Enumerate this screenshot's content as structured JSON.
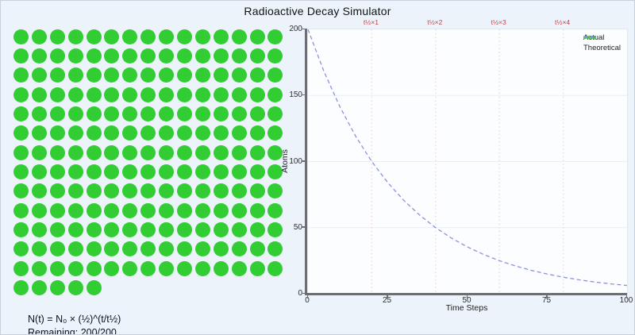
{
  "title": "Radioactive Decay Simulator",
  "atoms": {
    "total": 200,
    "per_row": 15,
    "rows": 14,
    "color": "#32cd32"
  },
  "chart_data": {
    "type": "line",
    "title": "",
    "xlabel": "Time Steps",
    "ylabel": "Atoms",
    "xlim": [
      0,
      100
    ],
    "ylim": [
      0,
      200
    ],
    "xticks": [
      0,
      25,
      50,
      75,
      100
    ],
    "yticks": [
      0,
      50,
      100,
      150,
      200
    ],
    "grid": "horizontal-light",
    "legend_position": "top-right",
    "half_life": 20,
    "initial_atoms": 200,
    "half_life_markers": [
      {
        "x": 20,
        "label": "t½×1"
      },
      {
        "x": 40,
        "label": "t½×2"
      },
      {
        "x": 60,
        "label": "t½×3"
      },
      {
        "x": 80,
        "label": "t½×4"
      }
    ],
    "series": [
      {
        "name": "Actual",
        "color": "#32cd32",
        "style": "solid",
        "points": [
          [
            0,
            200
          ]
        ]
      },
      {
        "name": "Theoretical",
        "color": "#8b92da",
        "style": "dashed",
        "points": [
          [
            0,
            200
          ],
          [
            5,
            168.18
          ],
          [
            10,
            141.42
          ],
          [
            15,
            118.92
          ],
          [
            20,
            100
          ],
          [
            25,
            84.09
          ],
          [
            30,
            70.71
          ],
          [
            35,
            59.46
          ],
          [
            40,
            50
          ],
          [
            45,
            42.04
          ],
          [
            50,
            35.36
          ],
          [
            55,
            29.73
          ],
          [
            60,
            25
          ],
          [
            65,
            21.02
          ],
          [
            70,
            17.68
          ],
          [
            75,
            14.87
          ],
          [
            80,
            12.5
          ],
          [
            85,
            10.51
          ],
          [
            90,
            8.84
          ],
          [
            95,
            7.43
          ],
          [
            100,
            6.25
          ]
        ]
      }
    ]
  },
  "footer": {
    "formula": "N(t) = N₀ × (½)^(t/t½)",
    "remaining": "Remaining: 200/200"
  },
  "colors": {
    "background": "#ecf3fa",
    "plot_background": "#fcfdff",
    "atom_green": "#32cd32",
    "theoretical_line": "#8b92da",
    "half_life_marker_line": "#f2d9de",
    "half_life_label": "#c2444e",
    "gridline": "#e8eef3",
    "axis_spine": "#6b6f74"
  }
}
